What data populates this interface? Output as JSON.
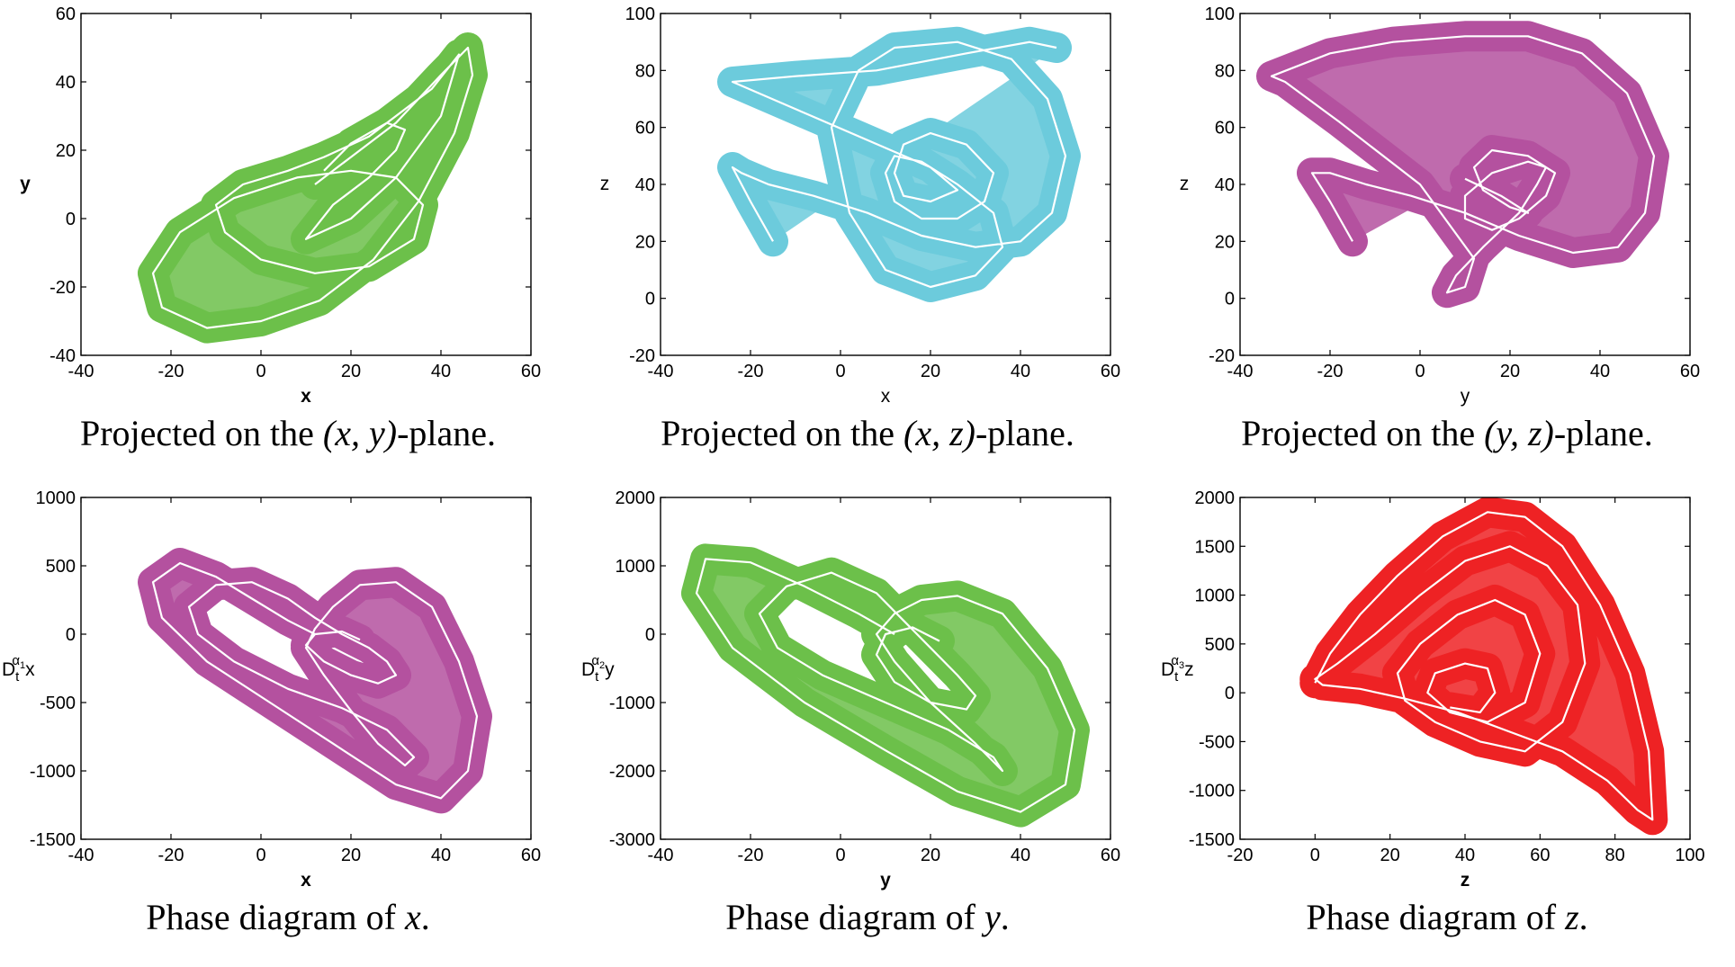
{
  "colors": {
    "green": "#6cc04a",
    "cyan": "#6ccbdc",
    "magenta": "#b4519f",
    "red": "#ee2224"
  },
  "chart_data": [
    {
      "type": "line",
      "caption": {
        "prefix": "Projected on the ",
        "math": "(x, y)",
        "suffix": "-plane."
      },
      "xlabel": "x",
      "ylabel": "y",
      "label_bold": true,
      "xlim": [
        -40,
        60
      ],
      "ylim": [
        -40,
        60
      ],
      "xticks": [
        -40,
        -20,
        0,
        20,
        40,
        60
      ],
      "yticks": [
        -40,
        -20,
        0,
        20,
        40,
        60
      ],
      "color": "#6cc04a",
      "series": [
        {
          "x": [
            12,
            20,
            30,
            40,
            46,
            47,
            43,
            35,
            25,
            13,
            0,
            -12,
            -22,
            -24,
            -18,
            -6,
            8,
            20,
            30,
            36,
            34,
            24,
            12,
            0,
            -8,
            -10,
            -4,
            6,
            14,
            24,
            38,
            44,
            40,
            30,
            20,
            10,
            16,
            24,
            30,
            32,
            28,
            20,
            14
          ],
          "y": [
            10,
            18,
            28,
            42,
            50,
            42,
            25,
            5,
            -12,
            -24,
            -30,
            -32,
            -26,
            -16,
            -4,
            6,
            12,
            14,
            12,
            4,
            -6,
            -14,
            -16,
            -12,
            -4,
            4,
            10,
            14,
            18,
            24,
            38,
            48,
            30,
            12,
            0,
            -6,
            4,
            12,
            20,
            26,
            28,
            22,
            14
          ]
        }
      ]
    },
    {
      "type": "line",
      "caption": {
        "prefix": "Projected on the ",
        "math": "(x, z)",
        "suffix": "-plane."
      },
      "xlabel": "x",
      "ylabel": "z",
      "label_bold": false,
      "xlim": [
        -40,
        60
      ],
      "ylim": [
        -20,
        100
      ],
      "xticks": [
        -40,
        -20,
        0,
        20,
        40,
        60
      ],
      "yticks": [
        -20,
        0,
        20,
        40,
        60,
        80,
        100
      ],
      "color": "#6ccbdc",
      "series": [
        {
          "x": [
            -15,
            -20,
            -24,
            -22,
            -16,
            -6,
            6,
            18,
            30,
            40,
            47,
            50,
            46,
            38,
            26,
            12,
            4,
            -2,
            2,
            10,
            20,
            30,
            36,
            34,
            26,
            18,
            12,
            10,
            12,
            18,
            26,
            32,
            34,
            28,
            20,
            14,
            12,
            14,
            20,
            26,
            20,
            -24,
            -10,
            8,
            28,
            42,
            48
          ],
          "y": [
            20,
            34,
            46,
            44,
            40,
            36,
            30,
            22,
            18,
            20,
            30,
            50,
            70,
            84,
            90,
            88,
            80,
            60,
            30,
            10,
            4,
            8,
            18,
            30,
            40,
            48,
            50,
            44,
            34,
            28,
            28,
            34,
            44,
            54,
            58,
            54,
            44,
            36,
            34,
            38,
            46,
            76,
            78,
            80,
            86,
            90,
            88
          ]
        }
      ]
    },
    {
      "type": "line",
      "caption": {
        "prefix": "Projected on the ",
        "math": "(y, z)",
        "suffix": "-plane."
      },
      "xlabel": "y",
      "ylabel": "z",
      "label_bold": false,
      "xlim": [
        -40,
        60
      ],
      "ylim": [
        -20,
        100
      ],
      "xticks": [
        -40,
        -20,
        0,
        20,
        40,
        60
      ],
      "yticks": [
        -20,
        0,
        20,
        40,
        60,
        80,
        100
      ],
      "color": "#b4519f",
      "series": [
        {
          "x": [
            -15,
            -20,
            -24,
            -20,
            -12,
            -2,
            10,
            22,
            34,
            44,
            50,
            52,
            46,
            36,
            24,
            10,
            -6,
            -20,
            -33,
            -30,
            -18,
            0,
            12,
            10,
            6,
            8,
            14,
            22,
            26,
            28,
            24,
            16,
            10,
            10,
            16,
            22,
            28,
            30,
            24,
            16,
            12,
            14,
            20,
            24,
            18,
            10
          ],
          "y": [
            20,
            34,
            44,
            44,
            40,
            36,
            30,
            22,
            16,
            18,
            30,
            50,
            72,
            86,
            92,
            92,
            90,
            86,
            78,
            76,
            62,
            40,
            14,
            4,
            2,
            8,
            18,
            30,
            40,
            46,
            48,
            44,
            36,
            28,
            24,
            28,
            36,
            44,
            50,
            52,
            46,
            38,
            32,
            30,
            36,
            42
          ]
        }
      ]
    },
    {
      "type": "line",
      "caption": {
        "prefix": "Phase diagram of ",
        "math": "x",
        "suffix": "."
      },
      "xlabel": "x",
      "ylabel_base": "D",
      "ylabel_sub": "t",
      "ylabel_sup": "α",
      "ylabel_supsub": "1",
      "ylabel_var": "x",
      "label_bold": true,
      "xlim": [
        -40,
        60
      ],
      "ylim": [
        -1500,
        1000
      ],
      "xticks": [
        -40,
        -20,
        0,
        20,
        40,
        60
      ],
      "yticks": [
        -1500,
        -1000,
        -500,
        0,
        500,
        1000
      ],
      "color": "#b4519f",
      "series": [
        {
          "x": [
            12,
            6,
            -2,
            -10,
            -18,
            -24,
            -22,
            -12,
            2,
            16,
            30,
            40,
            46,
            48,
            44,
            38,
            30,
            22,
            16,
            12,
            10,
            14,
            20,
            26,
            32,
            34,
            28,
            18,
            6,
            -6,
            -14,
            -16,
            -10,
            -2,
            6,
            12,
            18,
            24,
            28,
            30,
            26,
            20,
            14,
            10,
            12,
            18,
            22
          ],
          "y": [
            0,
            100,
            260,
            420,
            520,
            380,
            120,
            -200,
            -500,
            -800,
            -1100,
            -1200,
            -1000,
            -600,
            -200,
            200,
            380,
            360,
            200,
            40,
            -100,
            -300,
            -560,
            -800,
            -960,
            -900,
            -700,
            -540,
            -400,
            -200,
            0,
            200,
            360,
            380,
            260,
            120,
            0,
            -100,
            -200,
            -300,
            -360,
            -300,
            -200,
            -80,
            0,
            20,
            -40
          ]
        }
      ]
    },
    {
      "type": "line",
      "caption": {
        "prefix": "Phase diagram of ",
        "math": "y",
        "suffix": "."
      },
      "xlabel": "y",
      "ylabel_base": "D",
      "ylabel_sub": "t",
      "ylabel_sup": "α",
      "ylabel_supsub": "2",
      "ylabel_var": "y",
      "label_bold": true,
      "xlim": [
        -40,
        60
      ],
      "ylim": [
        -3000,
        2000
      ],
      "xticks": [
        -40,
        -20,
        0,
        20,
        40,
        60
      ],
      "yticks": [
        -3000,
        -2000,
        -1000,
        0,
        1000,
        2000
      ],
      "color": "#6cc04a",
      "series": [
        {
          "x": [
            12,
            4,
            -8,
            -20,
            -30,
            -32,
            -24,
            -8,
            10,
            26,
            40,
            50,
            52,
            46,
            36,
            26,
            18,
            12,
            8,
            12,
            20,
            30,
            36,
            34,
            24,
            10,
            -4,
            -14,
            -18,
            -12,
            -2,
            8,
            14,
            20,
            26,
            30,
            28,
            20,
            12,
            8,
            10,
            16,
            22
          ],
          "y": [
            0,
            300,
            700,
            1050,
            1100,
            600,
            -200,
            -1000,
            -1700,
            -2300,
            -2600,
            -2200,
            -1400,
            -500,
            300,
            560,
            500,
            300,
            0,
            -400,
            -1000,
            -1600,
            -2000,
            -1800,
            -1400,
            -1000,
            -600,
            -200,
            300,
            700,
            900,
            600,
            200,
            -200,
            -600,
            -900,
            -1100,
            -1000,
            -700,
            -300,
            0,
            100,
            -100
          ]
        }
      ]
    },
    {
      "type": "line",
      "caption": {
        "prefix": "Phase diagram of ",
        "math": "z",
        "suffix": "."
      },
      "xlabel": "z",
      "ylabel_base": "D",
      "ylabel_sub": "t",
      "ylabel_sup": "α",
      "ylabel_supsub": "3",
      "ylabel_var": "z",
      "label_bold": true,
      "xlim": [
        -20,
        100
      ],
      "ylim": [
        -1500,
        2000
      ],
      "xticks": [
        -20,
        0,
        20,
        40,
        60,
        80,
        100
      ],
      "yticks": [
        -1500,
        -1000,
        -500,
        0,
        500,
        1000,
        1500,
        2000
      ],
      "color": "#ee2224",
      "series": [
        {
          "x": [
            0,
            4,
            12,
            22,
            34,
            46,
            56,
            66,
            76,
            84,
            89,
            90,
            86,
            78,
            66,
            52,
            38,
            24,
            12,
            2,
            0,
            6,
            16,
            28,
            40,
            52,
            62,
            70,
            72,
            66,
            56,
            44,
            32,
            24,
            22,
            28,
            38,
            48,
            56,
            60,
            56,
            46,
            36,
            30,
            32,
            40,
            46,
            48,
            44,
            36
          ],
          "y": [
            100,
            400,
            800,
            1200,
            1600,
            1850,
            1800,
            1500,
            900,
            200,
            -600,
            -1300,
            -1200,
            -900,
            -600,
            -400,
            -200,
            -60,
            40,
            80,
            140,
            300,
            600,
            1000,
            1350,
            1500,
            1300,
            900,
            300,
            -300,
            -600,
            -500,
            -300,
            -80,
            200,
            500,
            800,
            950,
            800,
            400,
            -100,
            -300,
            -200,
            0,
            200,
            300,
            250,
            0,
            -200,
            -150
          ]
        }
      ]
    }
  ]
}
